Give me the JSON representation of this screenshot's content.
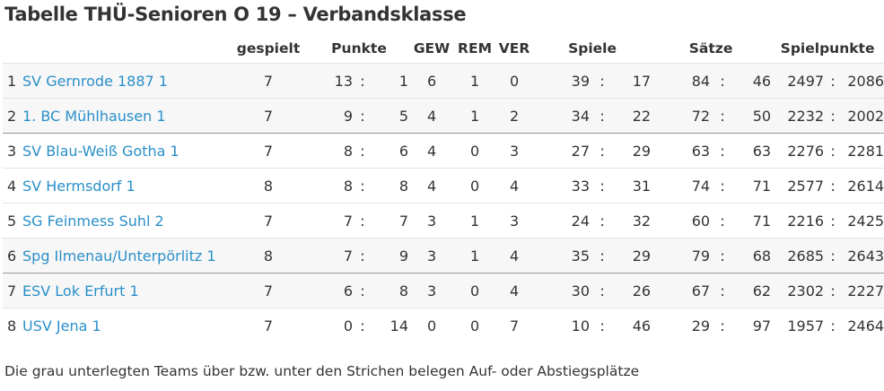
{
  "title": "Tabelle THÜ-Senioren O 19 – Verbandsklasse",
  "headers": {
    "gespielt": "gespielt",
    "punkte": "Punkte",
    "gew": "GEW",
    "rem": "REM",
    "ver": "VER",
    "spiele": "Spiele",
    "saetze": "Sätze",
    "spielpunkte": "Spielpunkte"
  },
  "separator": ":",
  "rows": [
    {
      "rank": "1",
      "team": "SV Gernrode 1887 1",
      "played": "7",
      "points_for": "13",
      "points_against": "1",
      "won": "6",
      "draw": "1",
      "lost": "0",
      "games_for": "39",
      "games_against": "17",
      "sets_for": "84",
      "sets_against": "46",
      "sp_for": "2497",
      "sp_against": "2086"
    },
    {
      "rank": "2",
      "team": "1. BC Mühlhausen 1",
      "played": "7",
      "points_for": "9",
      "points_against": "5",
      "won": "4",
      "draw": "1",
      "lost": "2",
      "games_for": "34",
      "games_against": "22",
      "sets_for": "72",
      "sets_against": "50",
      "sp_for": "2232",
      "sp_against": "2002"
    },
    {
      "rank": "3",
      "team": "SV Blau-Weiß Gotha 1",
      "played": "7",
      "points_for": "8",
      "points_against": "6",
      "won": "4",
      "draw": "0",
      "lost": "3",
      "games_for": "27",
      "games_against": "29",
      "sets_for": "63",
      "sets_against": "63",
      "sp_for": "2276",
      "sp_against": "2281"
    },
    {
      "rank": "4",
      "team": "SV Hermsdorf 1",
      "played": "8",
      "points_for": "8",
      "points_against": "8",
      "won": "4",
      "draw": "0",
      "lost": "4",
      "games_for": "33",
      "games_against": "31",
      "sets_for": "74",
      "sets_against": "71",
      "sp_for": "2577",
      "sp_against": "2614"
    },
    {
      "rank": "5",
      "team": "SG Feinmess Suhl 2",
      "played": "7",
      "points_for": "7",
      "points_against": "7",
      "won": "3",
      "draw": "1",
      "lost": "3",
      "games_for": "24",
      "games_against": "32",
      "sets_for": "60",
      "sets_against": "71",
      "sp_for": "2216",
      "sp_against": "2425"
    },
    {
      "rank": "6",
      "team": "Spg Ilmenau/Unterpörlitz 1",
      "played": "8",
      "points_for": "7",
      "points_against": "9",
      "won": "3",
      "draw": "1",
      "lost": "4",
      "games_for": "35",
      "games_against": "29",
      "sets_for": "79",
      "sets_against": "68",
      "sp_for": "2685",
      "sp_against": "2643"
    },
    {
      "rank": "7",
      "team": "ESV Lok Erfurt 1",
      "played": "7",
      "points_for": "6",
      "points_against": "8",
      "won": "3",
      "draw": "0",
      "lost": "4",
      "games_for": "30",
      "games_against": "26",
      "sets_for": "67",
      "sets_against": "62",
      "sp_for": "2302",
      "sp_against": "2227"
    },
    {
      "rank": "8",
      "team": "USV Jena 1",
      "played": "7",
      "points_for": "0",
      "points_against": "14",
      "won": "0",
      "draw": "0",
      "lost": "7",
      "games_for": "10",
      "games_against": "46",
      "sets_for": "29",
      "sets_against": "97",
      "sp_for": "1957",
      "sp_against": "2464"
    }
  ],
  "footnote": "Die grau unterlegten Teams über bzw. unter den Strichen belegen Auf- oder Abstiegsplätze",
  "colors": {
    "link": "#2a8fc9",
    "text": "#333333",
    "shaded_row": "#f7f7f7",
    "divider_line": "#9a9a9a"
  }
}
